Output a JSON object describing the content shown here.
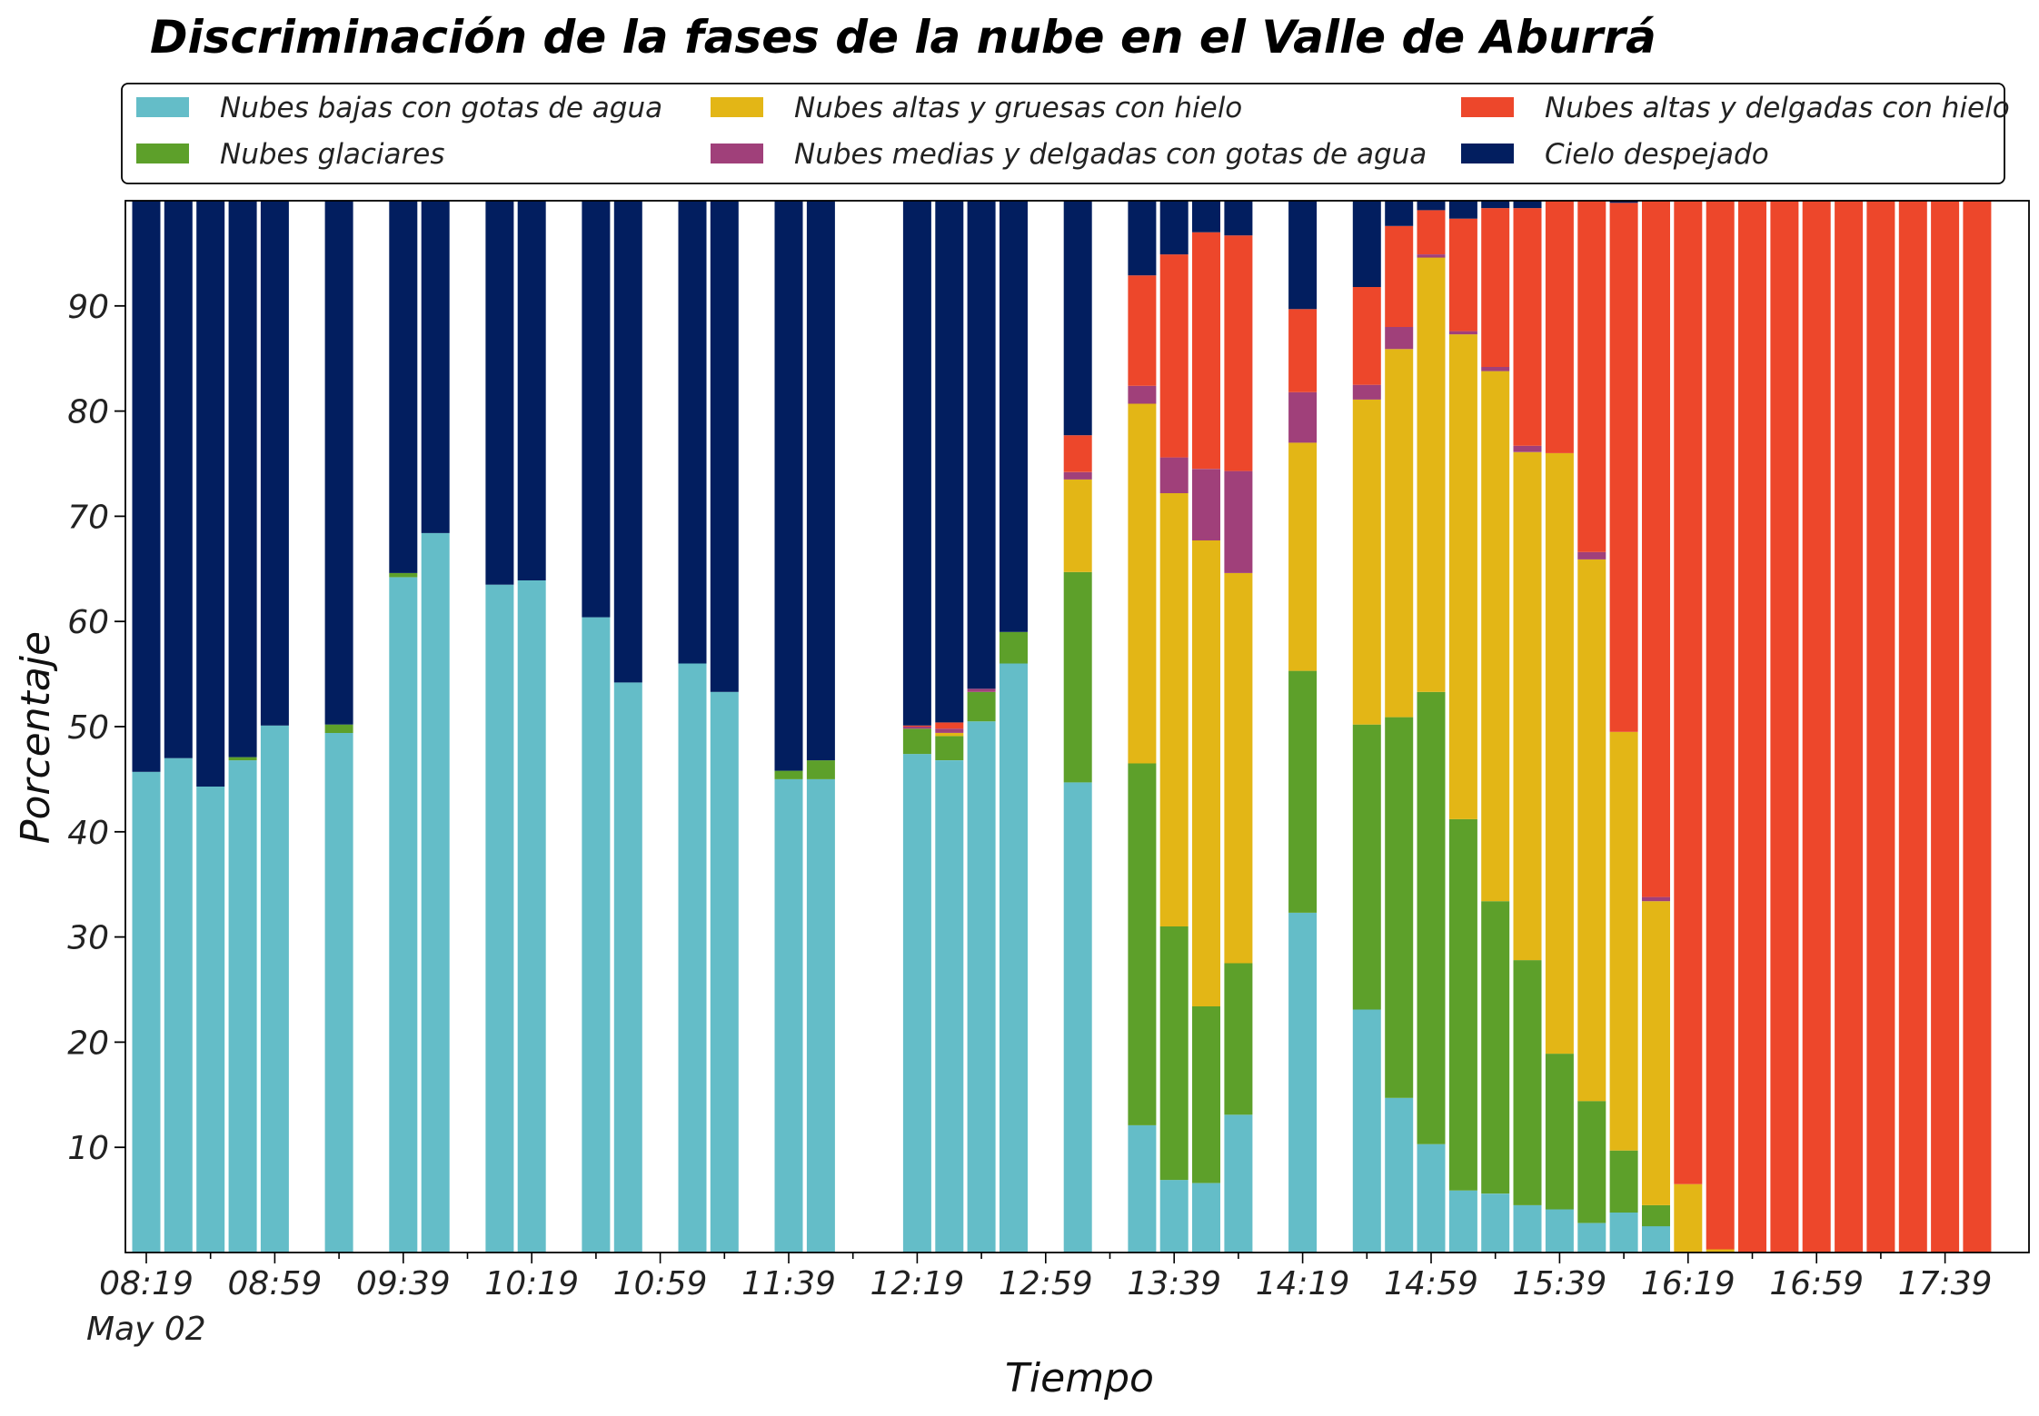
{
  "chart_data": {
    "type": "bar",
    "stacked": true,
    "title": "Discriminación de la fases de la nube en el Valle de Aburrá",
    "xlabel": "Tiempo",
    "ylabel": "Porcentaje",
    "ylim": [
      0,
      100
    ],
    "yticks": [
      10,
      20,
      30,
      40,
      50,
      60,
      70,
      80,
      90
    ],
    "xtick_labels": [
      "08:19",
      "08:59",
      "09:39",
      "10:19",
      "10:59",
      "11:39",
      "12:19",
      "12:59",
      "13:39",
      "14:19",
      "14:59",
      "15:39",
      "16:19",
      "16:59",
      "17:39"
    ],
    "xtick_date": "May 02",
    "grid": false,
    "legend_placement": "top (above plot), 3 columns",
    "slot_minutes": 10,
    "times": [
      "08:19",
      "08:29",
      "08:39",
      "08:49",
      "08:59",
      "09:09",
      "09:19",
      "09:29",
      "09:39",
      "09:49",
      "09:59",
      "10:09",
      "10:19",
      "10:29",
      "10:39",
      "10:49",
      "10:59",
      "11:09",
      "11:19",
      "11:29",
      "11:39",
      "11:49",
      "11:59",
      "12:09",
      "12:19",
      "12:29",
      "12:39",
      "12:49",
      "12:59",
      "13:09",
      "13:19",
      "13:29",
      "13:39",
      "13:49",
      "13:59",
      "14:09",
      "14:19",
      "14:29",
      "14:39",
      "14:49",
      "14:59",
      "15:09",
      "15:19",
      "15:29",
      "15:39",
      "15:49",
      "15:59",
      "16:09",
      "16:19",
      "16:29",
      "16:39",
      "16:49",
      "16:59",
      "17:09",
      "17:19",
      "17:29",
      "17:39",
      "17:49"
    ],
    "series": [
      {
        "name": "Nubes bajas con gotas de agua",
        "color": "#64bdc8",
        "values": [
          45.7,
          47,
          44.3,
          46.8,
          50.1,
          null,
          49.4,
          null,
          64.2,
          68.4,
          null,
          63.5,
          63.9,
          null,
          60.4,
          54.2,
          null,
          56,
          53.3,
          null,
          45,
          45,
          null,
          null,
          47.4,
          46.8,
          50.5,
          56,
          null,
          44.7,
          null,
          12.1,
          6.9,
          6.6,
          13.1,
          null,
          32.3,
          null,
          23.1,
          14.7,
          10.3,
          5.9,
          5.6,
          4.5,
          4.1,
          2.8,
          3.8,
          2.5,
          0,
          0,
          0,
          0,
          0,
          0,
          0,
          0,
          0,
          0
        ]
      },
      {
        "name": "Nubes glaciares",
        "color": "#5da02a",
        "values": [
          0,
          0,
          0,
          0.3,
          0,
          null,
          0.8,
          null,
          0.4,
          0,
          null,
          0,
          0,
          null,
          0,
          0,
          null,
          0,
          0,
          null,
          0.8,
          1.8,
          null,
          null,
          2.4,
          2.3,
          2.8,
          3,
          null,
          20,
          null,
          34.4,
          24.1,
          16.8,
          14.4,
          null,
          23,
          null,
          27.1,
          36.2,
          43,
          35.3,
          27.8,
          23.3,
          14.8,
          11.6,
          5.9,
          2,
          0,
          0,
          0,
          0,
          0,
          0,
          0,
          0,
          0,
          0
        ]
      },
      {
        "name": "Nubes altas y gruesas con hielo",
        "color": "#e3b616",
        "values": [
          0,
          0,
          0,
          0,
          0,
          null,
          0,
          null,
          0,
          0,
          null,
          0,
          0,
          null,
          0,
          0,
          null,
          0,
          0,
          null,
          0,
          0,
          null,
          null,
          0,
          0.3,
          0,
          0,
          null,
          8.8,
          null,
          34.2,
          41.2,
          44.3,
          37.1,
          null,
          21.7,
          null,
          30.9,
          35,
          41.3,
          46.1,
          50.4,
          48.3,
          57.1,
          51.5,
          39.8,
          28.9,
          6.5,
          0.3,
          0,
          0,
          0,
          0,
          0,
          0,
          0,
          0
        ]
      },
      {
        "name": "Nubes medias y delgadas con gotas de agua",
        "color": "#a0407a",
        "values": [
          0,
          0,
          0,
          0,
          0,
          null,
          0,
          null,
          0,
          0,
          null,
          0,
          0,
          null,
          0,
          0,
          null,
          0,
          0,
          null,
          0,
          0,
          null,
          null,
          0.2,
          0.4,
          0.3,
          0,
          null,
          0.7,
          null,
          1.7,
          3.4,
          6.8,
          9.7,
          null,
          4.8,
          null,
          1.4,
          2.1,
          0.3,
          0.3,
          0.4,
          0.6,
          0,
          0.7,
          0,
          0.4,
          0,
          0,
          0,
          0,
          0,
          0,
          0,
          0,
          0,
          0
        ]
      },
      {
        "name": "Nubes altas y delgadas con hielo",
        "color": "#ed472b",
        "values": [
          0,
          0,
          0,
          0,
          0,
          null,
          0,
          null,
          0,
          0,
          null,
          0,
          0,
          null,
          0,
          0,
          null,
          0,
          0,
          null,
          0,
          0,
          null,
          null,
          0.1,
          0.6,
          0,
          0,
          null,
          3.5,
          null,
          10.5,
          19.3,
          22.5,
          22.4,
          null,
          7.9,
          null,
          9.3,
          9.6,
          4.2,
          10.7,
          15.1,
          22.6,
          24,
          33.4,
          50.3,
          66.6,
          93.5,
          99.7,
          100,
          100,
          100,
          100,
          100,
          100,
          100,
          100
        ]
      },
      {
        "name": "Cielo despejado",
        "color": "#021e5f",
        "values": [
          54.3,
          53,
          55.7,
          52.9,
          49.9,
          null,
          49.8,
          null,
          35.4,
          31.6,
          null,
          36.5,
          36.1,
          null,
          39.6,
          45.8,
          null,
          44,
          46.7,
          null,
          54.2,
          53.2,
          null,
          null,
          49.9,
          49.6,
          46.4,
          41,
          null,
          22.3,
          null,
          7.1,
          5.1,
          3,
          3.3,
          null,
          10.3,
          null,
          8.2,
          2.4,
          0.9,
          1.7,
          0.7,
          0.7,
          0,
          0,
          0.2,
          0,
          0,
          0,
          0,
          0,
          0,
          0,
          0,
          0,
          0,
          0
        ]
      }
    ]
  }
}
